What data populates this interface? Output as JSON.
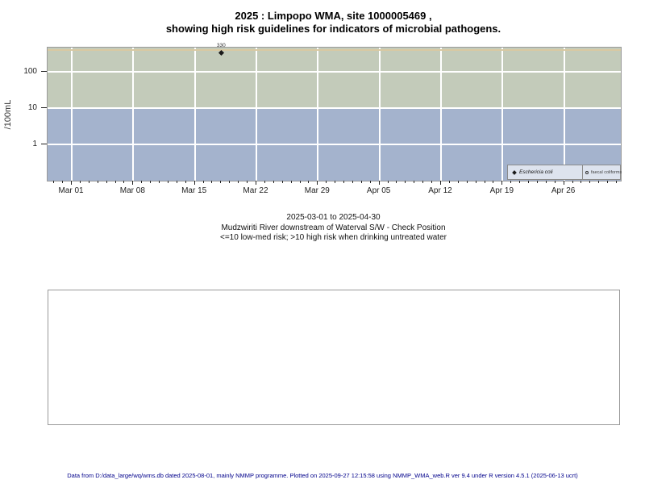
{
  "page": {
    "title_line1": "2025 : Limpopo WMA, site 1000005469 ,",
    "title_line2": "showing high risk guidelines for indicators of microbial pathogens.",
    "caption_line1": "2025-03-01 to 2025-04-30",
    "caption_line2": "Mudzwiriti River downstream of Waterval S/W - Check Position",
    "caption_line3": "<=10 low-med risk; >10 high risk when drinking untreated water",
    "footer": "Data from D:/data_large/wq/wms.db dated 2025-08-01, mainly NMMP programme. Plotted on 2025-09-27 12:15:58 using NMMP_WMA_web.R ver 9.4 under R version 4.5.1 (2025-06-13 ucrt)",
    "footer_color": "#00008B"
  },
  "chart_data": {
    "type": "scatter",
    "title": "2025 : Limpopo WMA, site 1000005469 , showing high risk guidelines for indicators of microbial pathogens.",
    "ylabel": "/100mL",
    "y_scale": "log10",
    "y_ticks": [
      "100",
      "10",
      "1"
    ],
    "ylim": [
      0.1,
      460
    ],
    "x_ticks": [
      "Mar 01",
      "Mar 08",
      "Mar 15",
      "Mar 22",
      "Mar 29",
      "Apr 05",
      "Apr 12",
      "Apr 19",
      "Apr 26"
    ],
    "date_range": {
      "start": "2025-03-01",
      "end": "2025-04-30"
    },
    "grid": true,
    "legend_position": "bottom-right-inside",
    "series": [
      {
        "name": "Eschericia coli",
        "symbol": "filled-diamond",
        "color": "#1a1a1a",
        "points": [
          {
            "date": "2025-03-18",
            "value": 330,
            "label": "330"
          }
        ]
      },
      {
        "name": "faecal coliforms",
        "symbol": "open-circle",
        "color": "#333333",
        "points": []
      }
    ],
    "risk_bands": [
      {
        "name": "high risk",
        "range": ">10",
        "color": "#c3cbba"
      },
      {
        "name": "low-med risk",
        "range": "<=10",
        "color": "#a4b3cd"
      }
    ],
    "guideline": {
      "value": 400,
      "color": "#d9c9a2"
    }
  }
}
